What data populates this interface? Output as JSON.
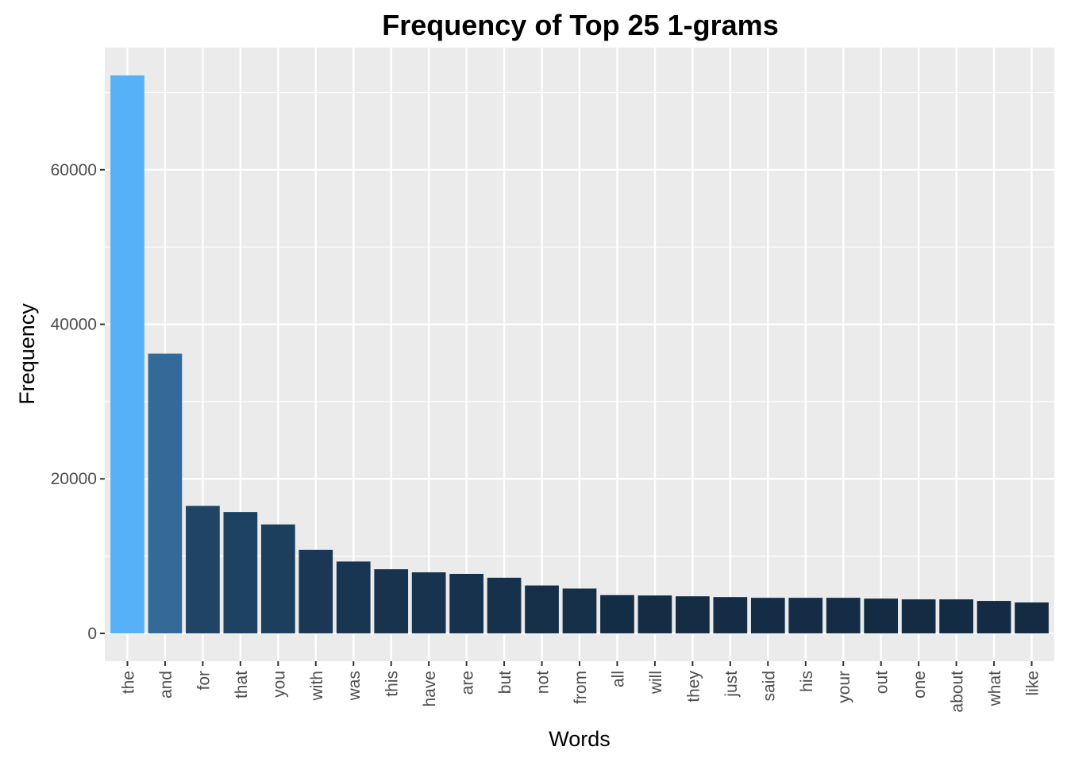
{
  "chart_data": {
    "type": "bar",
    "title": "Frequency of Top 25 1-grams",
    "xlabel": "Words",
    "ylabel": "Frequency",
    "categories": [
      "the",
      "and",
      "for",
      "that",
      "you",
      "with",
      "was",
      "this",
      "have",
      "are",
      "but",
      "not",
      "from",
      "all",
      "will",
      "they",
      "just",
      "said",
      "his",
      "your",
      "out",
      "one",
      "about",
      "what",
      "like"
    ],
    "values": [
      72200,
      36200,
      16500,
      15700,
      14100,
      10800,
      9300,
      8300,
      7900,
      7700,
      7200,
      6200,
      5800,
      4950,
      4900,
      4800,
      4700,
      4600,
      4600,
      4600,
      4500,
      4400,
      4400,
      4200,
      4000
    ],
    "ylim": [
      -3600,
      75800
    ],
    "yticks": [
      0,
      20000,
      40000,
      60000
    ],
    "ytick_labels": [
      "0",
      "20000",
      "40000",
      "60000"
    ],
    "grid": true,
    "colors": {
      "panel_background": "#ebebeb",
      "gridline": "#ffffff",
      "fill_low": "#132b43",
      "fill_high": "#56b1f7"
    }
  }
}
